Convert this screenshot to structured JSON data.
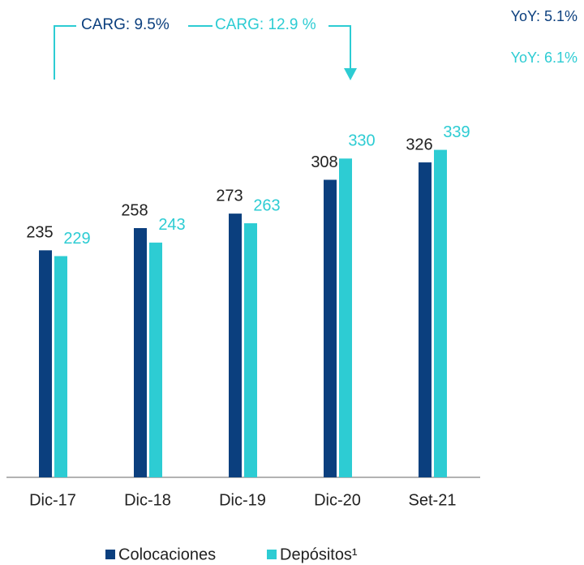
{
  "chart_data": {
    "type": "bar",
    "categories": [
      "Dic-17",
      "Dic-18",
      "Dic-19",
      "Dic-20",
      "Set-21"
    ],
    "series": [
      {
        "name": "Colocaciones",
        "color": "#0b3f7e",
        "values": [
          235,
          258,
          273,
          308,
          326
        ]
      },
      {
        "name": "Depósitos¹",
        "color": "#2dccd3",
        "values": [
          229,
          243,
          263,
          330,
          339
        ]
      }
    ],
    "annotations": [
      "CARG: 9.5%",
      "CARG: 12.9 %",
      "YoY: 5.1%",
      "YoY: 6.1%"
    ]
  }
}
